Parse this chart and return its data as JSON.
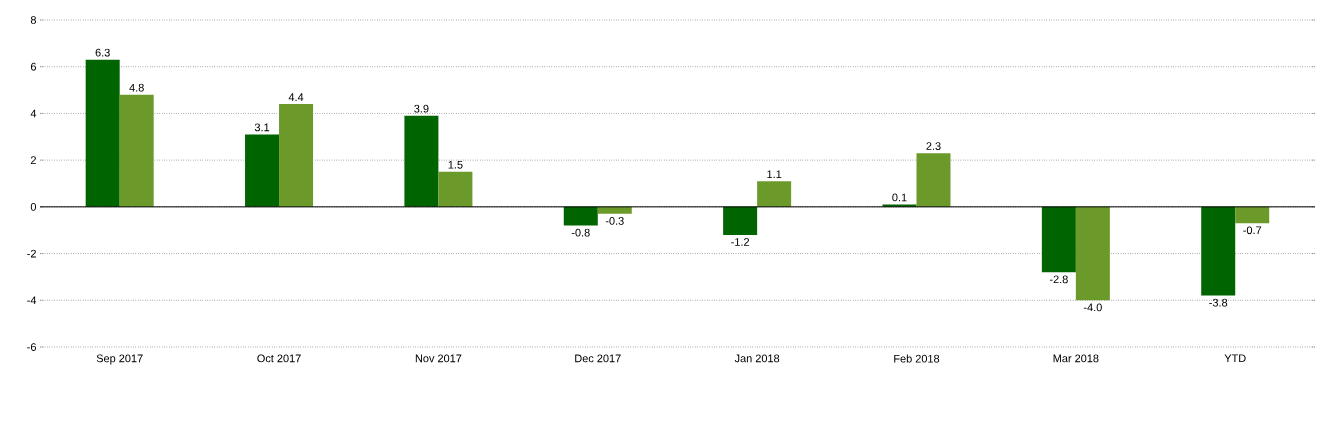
{
  "chart_data": {
    "type": "bar",
    "categories": [
      "Sep 2017",
      "Oct 2017",
      "Nov 2017",
      "Dec 2017",
      "Jan 2018",
      "Feb 2018",
      "Mar 2018",
      "YTD"
    ],
    "series": [
      {
        "color": "#006400",
        "values": [
          6.3,
          3.1,
          3.9,
          -0.8,
          -1.2,
          0.1,
          -2.8,
          -3.8
        ],
        "value_labels": [
          "6.3",
          "3.1",
          "3.9",
          "-0.8",
          "-1.2",
          "0.1",
          "-2.8",
          "-3.8"
        ]
      },
      {
        "color": "#6b9a2b",
        "values": [
          4.8,
          4.4,
          1.5,
          -0.3,
          1.1,
          2.3,
          -4.0,
          -0.7
        ],
        "value_labels": [
          "4.8",
          "4.4",
          "1.5",
          "-0.3",
          "1.1",
          "2.3",
          "-4.0",
          "-0.7"
        ]
      }
    ],
    "ylim": [
      -6,
      8
    ],
    "yticks": [
      -6,
      -4,
      -2,
      0,
      2,
      4,
      6,
      8
    ],
    "grid": "y"
  }
}
